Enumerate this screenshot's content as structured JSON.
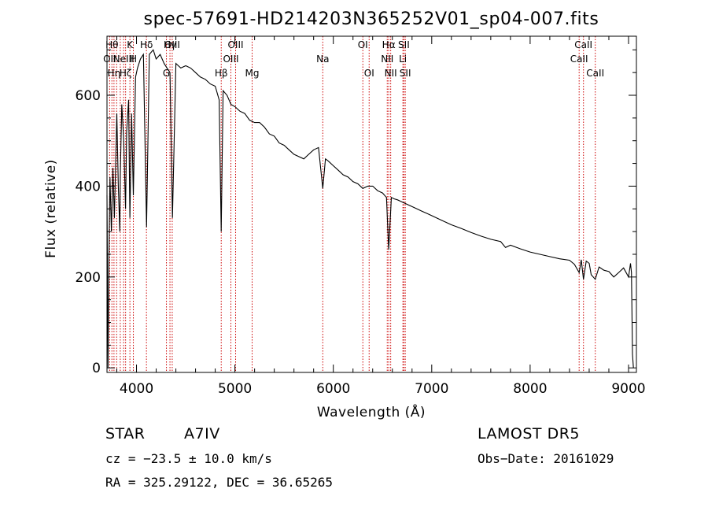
{
  "chart_data": {
    "type": "line",
    "title": "spec-57691-HD214203N365252V01_sp04-007.fits",
    "xlabel": "Wavelength (Å)",
    "ylabel": "Flux (relative)",
    "xlim": [
      3700,
      9080
    ],
    "ylim": [
      -10,
      730
    ],
    "xticks": [
      4000,
      5000,
      6000,
      7000,
      8000,
      9000
    ],
    "xtick_labels": [
      "4000",
      "5000",
      "6000",
      "7000",
      "8000",
      "9000"
    ],
    "yticks": [
      0,
      200,
      400,
      600
    ],
    "ytick_labels": [
      "0",
      "200",
      "400",
      "600"
    ],
    "grid": false,
    "line_color": "#000000",
    "marker_color": "#cc0000",
    "series": [
      {
        "x": [
          3700,
          3710,
          3720,
          3730,
          3745,
          3760,
          3775,
          3790,
          3800,
          3815,
          3830,
          3835,
          3850,
          3870,
          3889,
          3900,
          3920,
          3933,
          3950,
          3968,
          3990,
          4010,
          4040,
          4070,
          4102,
          4130,
          4170,
          4200,
          4240,
          4280,
          4310,
          4340,
          4365,
          4400,
          4450,
          4500,
          4550,
          4600,
          4650,
          4700,
          4750,
          4800,
          4840,
          4861,
          4880,
          4920,
          4960,
          5000,
          5050,
          5100,
          5150,
          5200,
          5250,
          5300,
          5350,
          5400,
          5450,
          5500,
          5550,
          5600,
          5650,
          5700,
          5750,
          5800,
          5850,
          5893,
          5920,
          5950,
          6000,
          6050,
          6100,
          6150,
          6200,
          6250,
          6300,
          6350,
          6400,
          6450,
          6500,
          6540,
          6563,
          6590,
          6620,
          6650,
          6700,
          6750,
          6800,
          6850,
          6900,
          6950,
          7000,
          7100,
          7200,
          7300,
          7400,
          7500,
          7600,
          7700,
          7750,
          7800,
          7900,
          8000,
          8100,
          8200,
          8300,
          8400,
          8450,
          8498,
          8520,
          8542,
          8570,
          8600,
          8620,
          8662,
          8700,
          8750,
          8800,
          8850,
          8900,
          8950,
          9000,
          9020,
          9030,
          9040,
          9050
        ],
        "y": [
          380,
          0,
          250,
          420,
          300,
          440,
          330,
          470,
          560,
          400,
          300,
          420,
          580,
          500,
          350,
          520,
          590,
          330,
          560,
          380,
          640,
          660,
          680,
          690,
          310,
          690,
          700,
          680,
          690,
          670,
          660,
          650,
          330,
          670,
          660,
          665,
          660,
          650,
          640,
          635,
          625,
          620,
          590,
          300,
          610,
          600,
          580,
          575,
          565,
          560,
          545,
          540,
          540,
          530,
          515,
          510,
          495,
          490,
          480,
          470,
          465,
          460,
          470,
          480,
          485,
          395,
          460,
          455,
          445,
          435,
          425,
          420,
          410,
          405,
          395,
          400,
          400,
          390,
          385,
          375,
          260,
          375,
          372,
          370,
          365,
          360,
          355,
          350,
          345,
          340,
          335,
          325,
          315,
          307,
          298,
          290,
          283,
          278,
          265,
          270,
          262,
          255,
          250,
          245,
          240,
          237,
          228,
          210,
          238,
          195,
          235,
          230,
          205,
          195,
          222,
          215,
          212,
          200,
          210,
          220,
          200,
          230,
          210,
          30,
          0
        ]
      }
    ],
    "line_markers": [
      {
        "x": 3727,
        "label": "OII",
        "row": 2
      },
      {
        "x": 3750,
        "label": "Hθ",
        "row": 1
      },
      {
        "x": 3771,
        "label": "Hη",
        "row": 3
      },
      {
        "x": 3798,
        "label": "",
        "row": 0
      },
      {
        "x": 3835,
        "label": "",
        "row": 0
      },
      {
        "x": 3869,
        "label": "NeIII",
        "row": 2
      },
      {
        "x": 3889,
        "label": "Hζ",
        "row": 3
      },
      {
        "x": 3933,
        "label": "K",
        "row": 1
      },
      {
        "x": 3968,
        "label": "H",
        "row": 2
      },
      {
        "x": 4101,
        "label": "Hδ",
        "row": 1
      },
      {
        "x": 4304,
        "label": "G",
        "row": 3
      },
      {
        "x": 4340,
        "label": "Hγ",
        "row": 1
      },
      {
        "x": 4363,
        "label": "OIII",
        "row": 1
      },
      {
        "x": 4861,
        "label": "Hβ",
        "row": 3
      },
      {
        "x": 4959,
        "label": "OIII",
        "row": 2
      },
      {
        "x": 5007,
        "label": "OIII",
        "row": 1
      },
      {
        "x": 5175,
        "label": "Mg",
        "row": 3
      },
      {
        "x": 5893,
        "label": "Na",
        "row": 2
      },
      {
        "x": 6300,
        "label": "OI",
        "row": 1
      },
      {
        "x": 6364,
        "label": "OI",
        "row": 3
      },
      {
        "x": 6548,
        "label": "NII",
        "row": 2
      },
      {
        "x": 6563,
        "label": "Hα",
        "row": 1
      },
      {
        "x": 6583,
        "label": "NII",
        "row": 3
      },
      {
        "x": 6707,
        "label": "Li",
        "row": 2
      },
      {
        "x": 6717,
        "label": "SII",
        "row": 1
      },
      {
        "x": 6731,
        "label": "SII",
        "row": 3
      },
      {
        "x": 8498,
        "label": "CaII",
        "row": 2
      },
      {
        "x": 8542,
        "label": "CaII",
        "row": 1
      },
      {
        "x": 8662,
        "label": "CaII",
        "row": 3
      }
    ]
  },
  "info": {
    "object_class": "STAR",
    "subclass": "A7IV",
    "survey": "LAMOST  DR5",
    "cz": "cz = −23.5 ± 10.0 km/s",
    "obs_date": "Obs−Date: 20161029",
    "coords": "RA = 325.29122, DEC =  36.65265"
  }
}
